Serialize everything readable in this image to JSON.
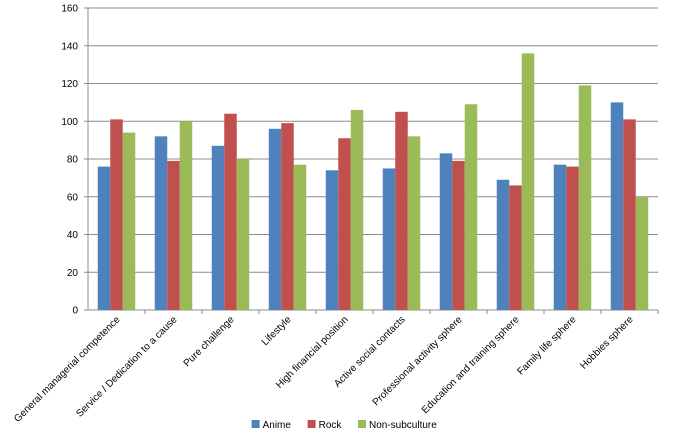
{
  "chart_data": {
    "type": "bar",
    "title": "",
    "xlabel": "",
    "ylabel": "",
    "ylim": [
      0,
      160
    ],
    "yticks": [
      0,
      20,
      40,
      60,
      80,
      100,
      120,
      140,
      160
    ],
    "grid": true,
    "legend_position": "bottom",
    "categories": [
      "General managerial competence",
      "Service / Dedication to a cause",
      "Pure challenge",
      "Lifestyle",
      "High financial position",
      "Active social contacts",
      "Professional activity sphere",
      "Education and training sphere",
      "Family life sphere",
      "Hobbies sphere"
    ],
    "series": [
      {
        "name": "Anime",
        "color": "#4F81BD",
        "values": [
          76,
          92,
          87,
          96,
          74,
          75,
          83,
          69,
          77,
          110
        ]
      },
      {
        "name": "Rock",
        "color": "#C0504D",
        "values": [
          101,
          79,
          104,
          99,
          91,
          105,
          79,
          66,
          76,
          101
        ]
      },
      {
        "name": "Non-subculture",
        "color": "#9BBB59",
        "values": [
          94,
          100,
          80,
          77,
          106,
          92,
          109,
          136,
          119,
          60
        ]
      }
    ]
  }
}
